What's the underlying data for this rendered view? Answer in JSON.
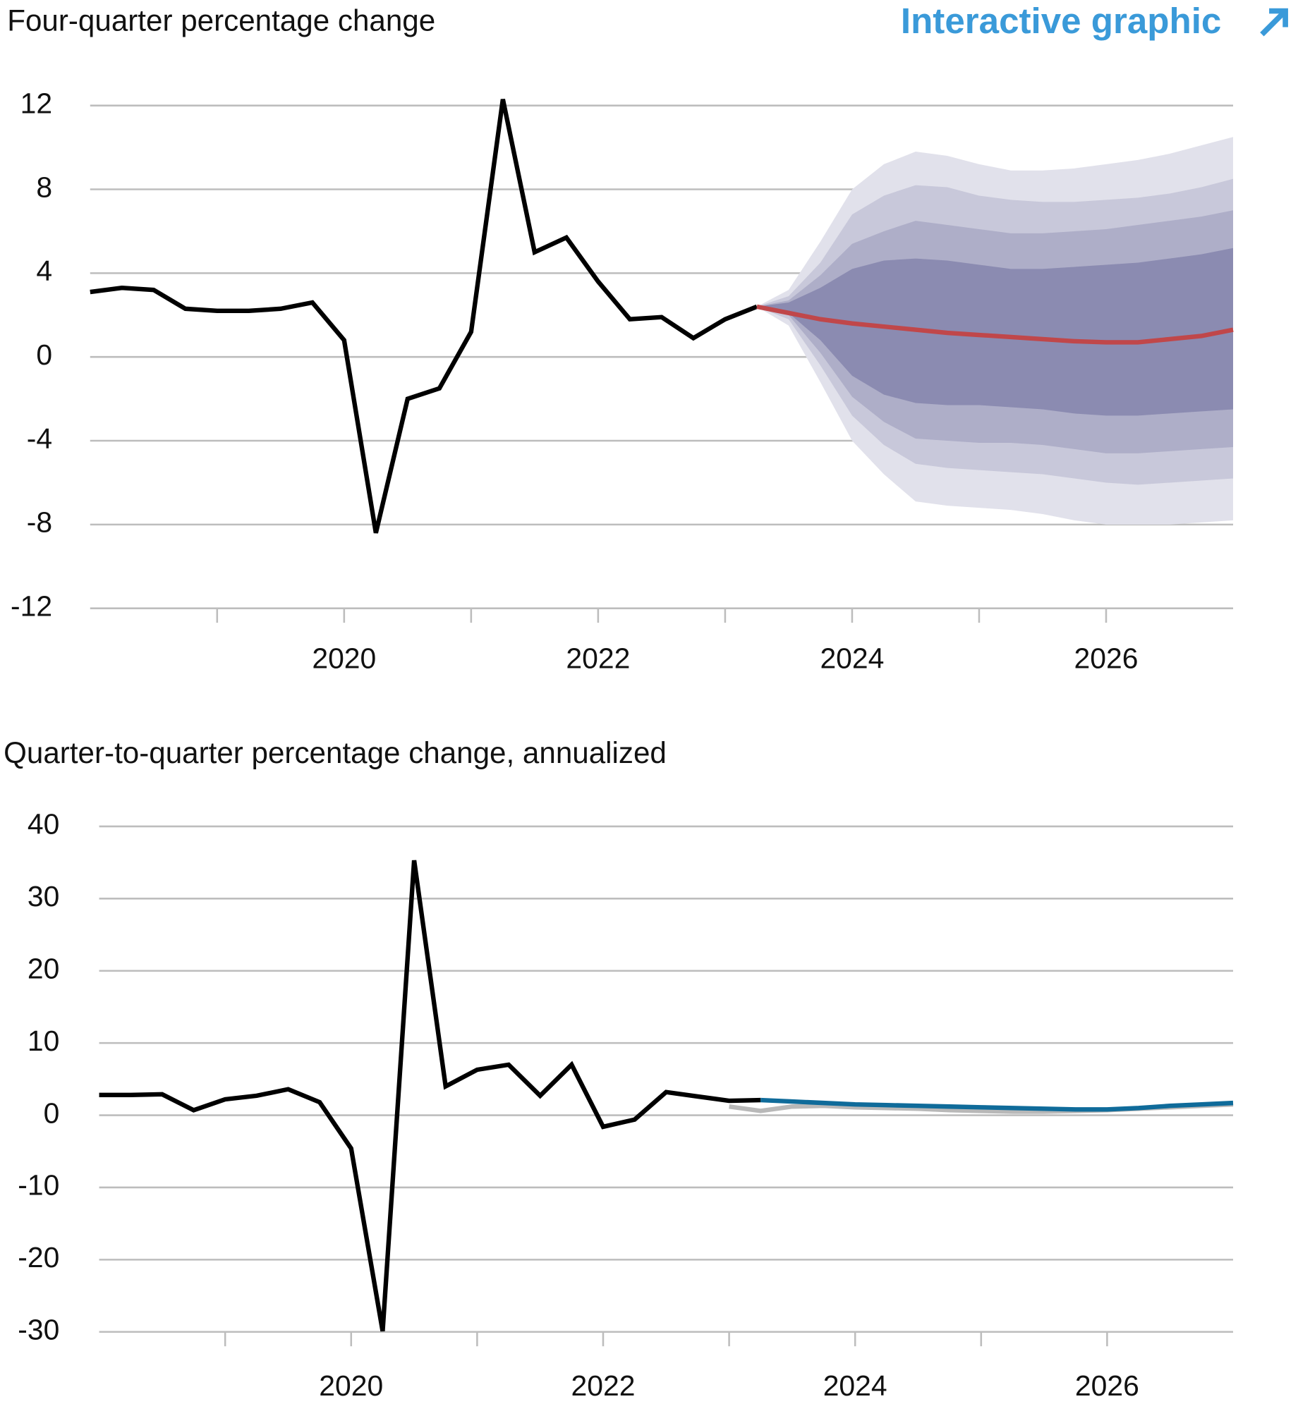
{
  "link": {
    "text": "Interactive graphic"
  },
  "chart_data": [
    {
      "type": "line",
      "title": "Four-quarter percentage change",
      "xlim": [
        2018,
        2027
      ],
      "xticks": [
        {
          "value": 2020,
          "label": "2020"
        },
        {
          "value": 2022,
          "label": "2022"
        },
        {
          "value": 2024,
          "label": "2024"
        },
        {
          "value": 2026,
          "label": "2026"
        }
      ],
      "x_minor_ticks": [
        2019,
        2021,
        2023,
        2025
      ],
      "ylim": [
        -12,
        12
      ],
      "yticks": [
        -12,
        -8,
        -4,
        0,
        4,
        8,
        12
      ],
      "grid": true,
      "bands": {
        "x": [
          2023.25,
          2023.5,
          2023.75,
          2024.0,
          2024.25,
          2024.5,
          2024.75,
          2025.0,
          2025.25,
          2025.5,
          2025.75,
          2026.0,
          2026.25,
          2026.5,
          2026.75,
          2027.0
        ],
        "levels": [
          {
            "color": "#e1e1eb",
            "upper": [
              2.4,
              3.2,
              5.5,
              8.0,
              9.2,
              9.8,
              9.6,
              9.2,
              8.9,
              8.9,
              9.0,
              9.2,
              9.4,
              9.7,
              10.1,
              10.5
            ],
            "lower": [
              2.4,
              1.5,
              -1.2,
              -4.0,
              -5.6,
              -6.9,
              -7.1,
              -7.2,
              -7.3,
              -7.5,
              -7.8,
              -8.0,
              -8.0,
              -8.0,
              -7.9,
              -7.8
            ]
          },
          {
            "color": "#c8c8da",
            "upper": [
              2.4,
              2.9,
              4.5,
              6.8,
              7.7,
              8.2,
              8.1,
              7.7,
              7.5,
              7.4,
              7.4,
              7.5,
              7.6,
              7.8,
              8.1,
              8.5
            ],
            "lower": [
              2.4,
              1.8,
              -0.4,
              -2.8,
              -4.2,
              -5.1,
              -5.3,
              -5.4,
              -5.5,
              -5.6,
              -5.8,
              -6.0,
              -6.1,
              -6.0,
              -5.9,
              -5.8
            ]
          },
          {
            "color": "#aeaec8",
            "upper": [
              2.4,
              2.7,
              3.9,
              5.4,
              6.0,
              6.5,
              6.3,
              6.1,
              5.9,
              5.9,
              6.0,
              6.1,
              6.3,
              6.5,
              6.7,
              7.0
            ],
            "lower": [
              2.4,
              2.0,
              0.2,
              -1.9,
              -3.1,
              -3.9,
              -4.0,
              -4.1,
              -4.1,
              -4.2,
              -4.4,
              -4.6,
              -4.6,
              -4.5,
              -4.4,
              -4.3
            ]
          },
          {
            "color": "#8b8bb1",
            "upper": [
              2.4,
              2.6,
              3.3,
              4.2,
              4.6,
              4.7,
              4.6,
              4.4,
              4.2,
              4.2,
              4.3,
              4.4,
              4.5,
              4.7,
              4.9,
              5.2
            ],
            "lower": [
              2.4,
              2.1,
              0.8,
              -0.9,
              -1.8,
              -2.2,
              -2.3,
              -2.3,
              -2.4,
              -2.5,
              -2.7,
              -2.8,
              -2.8,
              -2.7,
              -2.6,
              -2.5
            ]
          }
        ]
      },
      "series": [
        {
          "color": "#000000",
          "x": [
            2018.0,
            2018.25,
            2018.5,
            2018.75,
            2019.0,
            2019.25,
            2019.5,
            2019.75,
            2020.0,
            2020.25,
            2020.5,
            2020.75,
            2021.0,
            2021.25,
            2021.5,
            2021.75,
            2022.0,
            2022.25,
            2022.5,
            2022.75,
            2023.0,
            2023.25
          ],
          "values": [
            3.1,
            3.3,
            3.2,
            2.3,
            2.2,
            2.2,
            2.3,
            2.6,
            0.8,
            -8.4,
            -2.0,
            -1.5,
            1.2,
            12.3,
            5.0,
            5.7,
            3.6,
            1.8,
            1.9,
            0.9,
            1.8,
            2.4
          ]
        },
        {
          "color": "#c0474a",
          "x": [
            2023.25,
            2023.5,
            2023.75,
            2024.0,
            2024.25,
            2024.5,
            2024.75,
            2025.0,
            2025.25,
            2025.5,
            2025.75,
            2026.0,
            2026.25,
            2026.5,
            2026.75,
            2027.0
          ],
          "values": [
            2.4,
            2.1,
            1.8,
            1.6,
            1.45,
            1.3,
            1.15,
            1.05,
            0.95,
            0.85,
            0.75,
            0.7,
            0.7,
            0.85,
            1.0,
            1.3
          ]
        }
      ]
    },
    {
      "type": "line",
      "title": "Quarter-to-quarter percentage change, annualized",
      "xlim": [
        2018,
        2027
      ],
      "xticks": [
        {
          "value": 2020,
          "label": "2020"
        },
        {
          "value": 2022,
          "label": "2022"
        },
        {
          "value": 2024,
          "label": "2024"
        },
        {
          "value": 2026,
          "label": "2026"
        }
      ],
      "x_minor_ticks": [
        2019,
        2021,
        2023,
        2025
      ],
      "ylim": [
        -30,
        40
      ],
      "yticks": [
        -30,
        -20,
        -10,
        0,
        10,
        20,
        30,
        40
      ],
      "grid": true,
      "series": [
        {
          "color": "#b8b8b8",
          "x": [
            2023.0,
            2023.25,
            2023.5,
            2023.75,
            2024.0,
            2024.25,
            2024.5,
            2024.75,
            2025.0,
            2025.25,
            2025.5,
            2025.75,
            2026.0,
            2026.25,
            2026.5,
            2026.75,
            2027.0
          ],
          "values": [
            1.2,
            0.6,
            1.2,
            1.3,
            1.1,
            1.0,
            0.9,
            0.7,
            0.6,
            0.5,
            0.5,
            0.6,
            0.7,
            0.9,
            1.1,
            1.3,
            1.5
          ]
        },
        {
          "color": "#000000",
          "x": [
            2018.0,
            2018.25,
            2018.5,
            2018.75,
            2019.0,
            2019.25,
            2019.5,
            2019.75,
            2020.0,
            2020.25,
            2020.5,
            2020.75,
            2021.0,
            2021.25,
            2021.5,
            2021.75,
            2022.0,
            2022.25,
            2022.5,
            2022.75,
            2023.0,
            2023.25
          ],
          "values": [
            2.8,
            2.8,
            2.9,
            0.7,
            2.2,
            2.7,
            3.6,
            1.8,
            -4.6,
            -29.9,
            35.3,
            4.0,
            6.3,
            7.0,
            2.7,
            7.0,
            -1.6,
            -0.6,
            3.2,
            2.6,
            2.0,
            2.1
          ]
        },
        {
          "color": "#0f6b9a",
          "x": [
            2023.25,
            2023.5,
            2023.75,
            2024.0,
            2024.25,
            2024.5,
            2024.75,
            2025.0,
            2025.25,
            2025.5,
            2025.75,
            2026.0,
            2026.25,
            2026.5,
            2026.75,
            2027.0
          ],
          "values": [
            2.1,
            1.9,
            1.7,
            1.5,
            1.4,
            1.3,
            1.2,
            1.1,
            1.0,
            0.9,
            0.8,
            0.8,
            1.0,
            1.3,
            1.5,
            1.7
          ]
        }
      ]
    }
  ]
}
